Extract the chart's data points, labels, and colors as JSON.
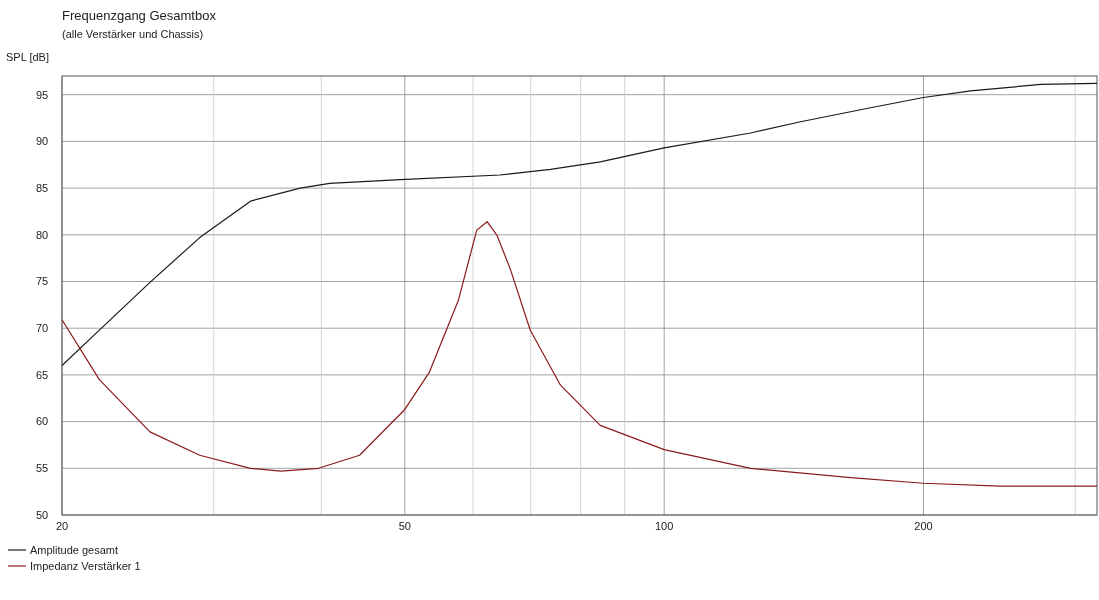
{
  "chart_data": {
    "type": "line",
    "title": "Frequenzgang Gesamtbox",
    "subtitle": "(alle Verstärker und Chassis)",
    "ylabel": "SPL [dB]",
    "log": "x",
    "grid": true,
    "legend": "bottom left",
    "marker": "none",
    "line_style": "solid",
    "xlim": [
      20,
      318
    ],
    "ylim": [
      50,
      97
    ],
    "xticks": [
      20,
      {
        "value": 30,
        "label": null
      },
      {
        "value": 40,
        "label": null
      },
      50,
      {
        "value": 60,
        "label": null
      },
      {
        "value": 70,
        "label": null
      },
      {
        "value": 80,
        "label": null
      },
      {
        "value": 90,
        "label": null
      },
      100,
      200,
      {
        "value": 300,
        "label": null
      }
    ],
    "yticks": [
      50,
      55,
      60,
      65,
      70,
      75,
      80,
      85,
      90,
      95
    ],
    "series": [
      {
        "name": "Amplitude gesamt",
        "color": "#1a1a1a",
        "x": [
          20,
          22.1,
          25.3,
          28.9,
          33.1,
          37.8,
          40.9,
          49.4,
          64.5,
          73.8,
          84.3,
          100,
          126,
          144,
          173.6,
          200,
          226.8,
          273.6,
          318
        ],
        "values": [
          66.0,
          69.8,
          74.9,
          79.7,
          83.6,
          85.0,
          85.5,
          85.9,
          86.4,
          87.0,
          87.8,
          89.3,
          90.9,
          92.1,
          93.6,
          94.7,
          95.4,
          96.1,
          96.2
        ]
      },
      {
        "name": "Impedanz Verstärker 1",
        "color": "#8b1a1a",
        "x": [
          20,
          22.1,
          25.3,
          28.9,
          33.1,
          35.9,
          39.7,
          44.3,
          50,
          53.4,
          57.7,
          60.6,
          62.3,
          64.0,
          66.3,
          69.9,
          75.8,
          84.3,
          100,
          126,
          164.6,
          200,
          245.7,
          318
        ],
        "values": [
          70.9,
          64.5,
          58.9,
          56.4,
          55.0,
          54.7,
          55.0,
          56.4,
          61.3,
          65.3,
          73.0,
          80.5,
          81.4,
          79.9,
          76.3,
          69.8,
          63.9,
          59.6,
          57.0,
          55.0,
          54.0,
          53.4,
          53.1,
          53.1
        ]
      }
    ]
  }
}
